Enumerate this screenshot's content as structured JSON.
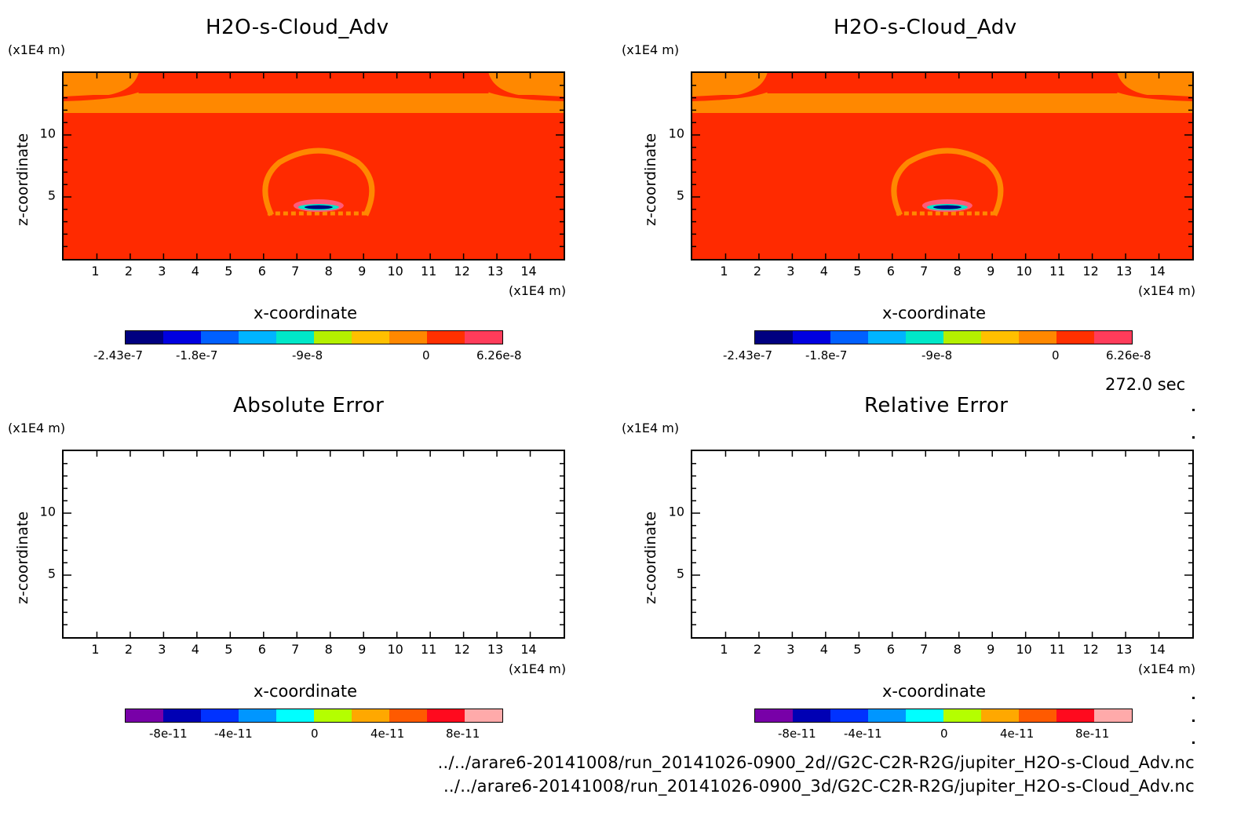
{
  "top_left": {
    "title": "H2O-s-Cloud_Adv",
    "yunit": "(x1E4 m)",
    "xunit": "(x1E4 m)",
    "xlabel": "x-coordinate",
    "ylabel": "z-coordinate",
    "cbar_labels": [
      "-2.43e-7",
      "-1.8e-7",
      "-9e-8",
      "0",
      "6.26e-8"
    ]
  },
  "top_right": {
    "title": "H2O-s-Cloud_Adv",
    "yunit": "(x1E4 m)",
    "xunit": "(x1E4 m)",
    "xlabel": "x-coordinate",
    "ylabel": "z-coordinate",
    "cbar_labels": [
      "-2.43e-7",
      "-1.8e-7",
      "-9e-8",
      "0",
      "6.26e-8"
    ]
  },
  "bottom_left": {
    "title": "Absolute Error",
    "yunit": "(x1E4 m)",
    "xunit": "(x1E4 m)",
    "xlabel": "x-coordinate",
    "ylabel": "z-coordinate",
    "cbar_labels": [
      "-8e-11",
      "-4e-11",
      "0",
      "4e-11",
      "8e-11"
    ]
  },
  "bottom_right": {
    "title": "Relative Error",
    "yunit": "(x1E4 m)",
    "xunit": "(x1E4 m)",
    "xlabel": "x-coordinate",
    "ylabel": "z-coordinate",
    "cbar_labels": [
      "-8e-11",
      "-4e-11",
      "0",
      "4e-11",
      "8e-11"
    ]
  },
  "timestamp": "272.0 sec",
  "file_paths": [
    "../../arare6-20141008/run_20141026-0900_2d//G2C-C2R-R2G/jupiter_H2O-s-Cloud_Adv.nc",
    "../../arare6-20141008/run_20141026-0900_3d/G2C-C2R-R2G/jupiter_H2O-s-Cloud_Adv.nc"
  ],
  "colors": {
    "field_background": "#ff2a00",
    "field_band": "#ff8800",
    "top_cbar": [
      "#000080",
      "#0000e0",
      "#0060ff",
      "#00b4ff",
      "#00e8c8",
      "#b4f000",
      "#ffc000",
      "#ff8800",
      "#ff3000",
      "#ff3c5a"
    ],
    "bottom_cbar": [
      "#7800a8",
      "#0000b4",
      "#0032ff",
      "#0096ff",
      "#00ffff",
      "#b4ff00",
      "#ffa800",
      "#ff5a00",
      "#ff0a1e",
      "#ffaaaa"
    ]
  },
  "chart_data": [
    {
      "type": "heatmap",
      "title": "H2O-s-Cloud_Adv",
      "xlabel": "x-coordinate",
      "ylabel": "z-coordinate",
      "xunit": "(x1E4 m)",
      "yunit": "(x1E4 m)",
      "xlim": [
        0,
        15
      ],
      "ylim": [
        0,
        15
      ],
      "xticks": [
        1,
        2,
        3,
        4,
        5,
        6,
        7,
        8,
        9,
        10,
        11,
        12,
        13,
        14
      ],
      "yticks": [
        5,
        10
      ],
      "colorbar": {
        "ticks": [
          "-2.43e-7",
          "-1.8e-7",
          "-9e-8",
          "0",
          "6.26e-8"
        ],
        "min": -2.43e-07,
        "max": 6.26e-08
      }
    },
    {
      "type": "heatmap",
      "title": "H2O-s-Cloud_Adv",
      "xlabel": "x-coordinate",
      "ylabel": "z-coordinate",
      "xunit": "(x1E4 m)",
      "yunit": "(x1E4 m)",
      "xlim": [
        0,
        15
      ],
      "ylim": [
        0,
        15
      ],
      "xticks": [
        1,
        2,
        3,
        4,
        5,
        6,
        7,
        8,
        9,
        10,
        11,
        12,
        13,
        14
      ],
      "yticks": [
        5,
        10
      ],
      "colorbar": {
        "ticks": [
          "-2.43e-7",
          "-1.8e-7",
          "-9e-8",
          "0",
          "6.26e-8"
        ],
        "min": -2.43e-07,
        "max": 6.26e-08
      }
    },
    {
      "type": "heatmap",
      "title": "Absolute Error",
      "xlabel": "x-coordinate",
      "ylabel": "z-coordinate",
      "xunit": "(x1E4 m)",
      "yunit": "(x1E4 m)",
      "xlim": [
        0,
        15
      ],
      "ylim": [
        0,
        15
      ],
      "xticks": [
        1,
        2,
        3,
        4,
        5,
        6,
        7,
        8,
        9,
        10,
        11,
        12,
        13,
        14
      ],
      "yticks": [
        5,
        10
      ],
      "colorbar": {
        "ticks": [
          "-8e-11",
          "-4e-11",
          "0",
          "4e-11",
          "8e-11"
        ],
        "min": -1e-10,
        "max": 1e-10
      }
    },
    {
      "type": "heatmap",
      "title": "Relative Error",
      "xlabel": "x-coordinate",
      "ylabel": "z-coordinate",
      "xunit": "(x1E4 m)",
      "yunit": "(x1E4 m)",
      "xlim": [
        0,
        15
      ],
      "ylim": [
        0,
        15
      ],
      "xticks": [
        1,
        2,
        3,
        4,
        5,
        6,
        7,
        8,
        9,
        10,
        11,
        12,
        13,
        14
      ],
      "yticks": [
        5,
        10
      ],
      "colorbar": {
        "ticks": [
          "-8e-11",
          "-4e-11",
          "0",
          "4e-11",
          "8e-11"
        ],
        "min": -1e-10,
        "max": 1e-10
      }
    }
  ]
}
